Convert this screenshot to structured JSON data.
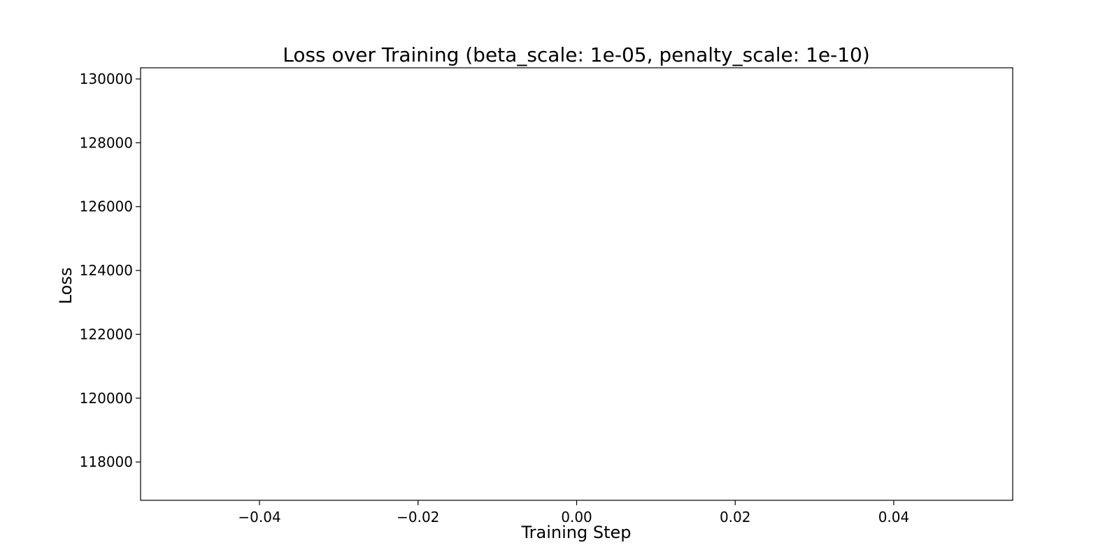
{
  "chart_data": {
    "type": "line",
    "title": "Loss over Training (beta_scale: 1e-05, penalty_scale: 1e-10)",
    "xlabel": "Training Step",
    "ylabel": "Loss",
    "xlim": [
      -0.055,
      0.055
    ],
    "ylim": [
      116800,
      130350
    ],
    "x_ticks": [
      -0.04,
      -0.02,
      0.0,
      0.02,
      0.04
    ],
    "x_tick_labels": [
      "−0.04",
      "−0.02",
      "0.00",
      "0.02",
      "0.04"
    ],
    "y_ticks": [
      118000,
      120000,
      122000,
      124000,
      126000,
      128000,
      130000
    ],
    "y_tick_labels": [
      "118000",
      "120000",
      "122000",
      "124000",
      "126000",
      "128000",
      "130000"
    ],
    "series": [],
    "grid": false,
    "legend": "none"
  }
}
